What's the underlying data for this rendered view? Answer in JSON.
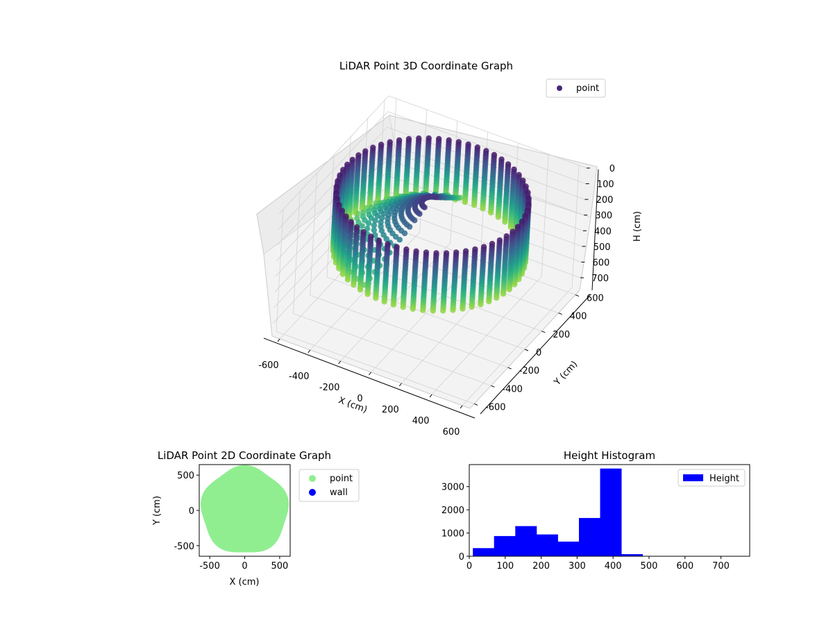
{
  "chart_data": [
    {
      "type": "scatter3d",
      "title": "LiDAR Point 3D Coordinate Graph",
      "xlabel": "X (cm)",
      "ylabel": "Y (cm)",
      "zlabel": "H (cm)",
      "xlim": [
        -650,
        650
      ],
      "ylim": [
        -650,
        650
      ],
      "zlim": [
        0,
        780
      ],
      "z_inverted": true,
      "xticks": [
        -600,
        -400,
        -200,
        0,
        200,
        400,
        600
      ],
      "yticks": [
        -600,
        -400,
        -200,
        0,
        200,
        400,
        600
      ],
      "zticks": [
        0,
        100,
        200,
        300,
        400,
        500,
        600,
        700
      ],
      "grid": true,
      "colormap": "viridis",
      "legend": {
        "position": "upper-right",
        "entries": [
          {
            "label": "point",
            "color": "#482878"
          }
        ]
      }
    },
    {
      "type": "scatter",
      "title": "LiDAR Point 2D Coordinate Graph",
      "xlabel": "X (cm)",
      "ylabel": "Y (cm)",
      "xlim": [
        -650,
        650
      ],
      "ylim": [
        -650,
        650
      ],
      "xticks": [
        -500,
        0,
        500
      ],
      "yticks": [
        -500,
        0,
        500
      ],
      "legend": {
        "position": "outside-right",
        "entries": [
          {
            "label": "point",
            "color": "#90ee90"
          },
          {
            "label": "wall",
            "color": "#0000ff"
          }
        ]
      }
    },
    {
      "type": "histogram",
      "title": "Height Histogram",
      "xlim": [
        0,
        780
      ],
      "ylim": [
        0,
        3950
      ],
      "xticks": [
        0,
        100,
        200,
        300,
        400,
        500,
        600,
        700
      ],
      "yticks": [
        0,
        1000,
        2000,
        3000
      ],
      "bin_edges": [
        10,
        69,
        128,
        187,
        246,
        305,
        364,
        423,
        482,
        541,
        600,
        659,
        718,
        777
      ],
      "counts": [
        350,
        870,
        1300,
        940,
        630,
        1650,
        3780,
        90,
        15,
        5,
        5,
        5,
        5
      ],
      "color": "#0000ff",
      "legend": {
        "position": "upper-right",
        "entries": [
          {
            "label": "Height",
            "color": "#0000ff"
          }
        ]
      }
    }
  ]
}
